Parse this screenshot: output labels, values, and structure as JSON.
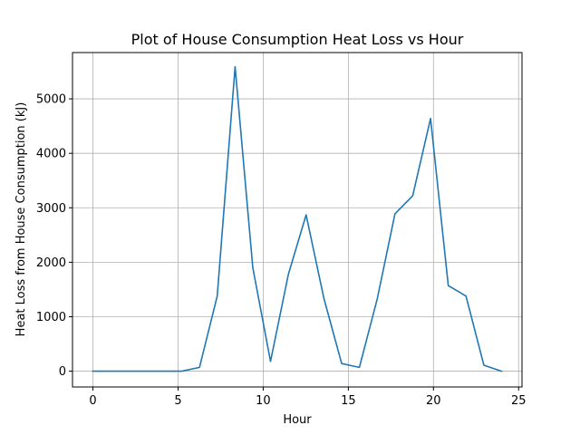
{
  "chart_data": {
    "type": "line",
    "title": "Plot of House Consumption Heat Loss vs Hour",
    "xlabel": "Hour",
    "ylabel": "Heat Loss from House Consumption (kJ)",
    "xlim": [
      -1.2,
      25.2
    ],
    "ylim": [
      -290,
      5850
    ],
    "xticks": [
      0,
      5,
      10,
      15,
      20,
      25
    ],
    "yticks": [
      0,
      1000,
      2000,
      3000,
      4000,
      5000
    ],
    "grid": true,
    "color": "#1f77b4",
    "series": [
      {
        "x": [
          0,
          1.04,
          2.09,
          3.13,
          4.17,
          5.22,
          6.26,
          7.3,
          8.35,
          9.39,
          10.43,
          11.48,
          12.52,
          13.57,
          14.61,
          15.65,
          16.7,
          17.74,
          18.78,
          19.83,
          20.87,
          21.91,
          22.96,
          24
        ],
        "y": [
          0,
          0,
          0,
          0,
          0,
          0,
          70,
          1380,
          5590,
          1900,
          180,
          1780,
          2870,
          1330,
          140,
          70,
          1330,
          2890,
          3220,
          4640,
          1570,
          1380,
          110,
          0
        ]
      }
    ]
  }
}
